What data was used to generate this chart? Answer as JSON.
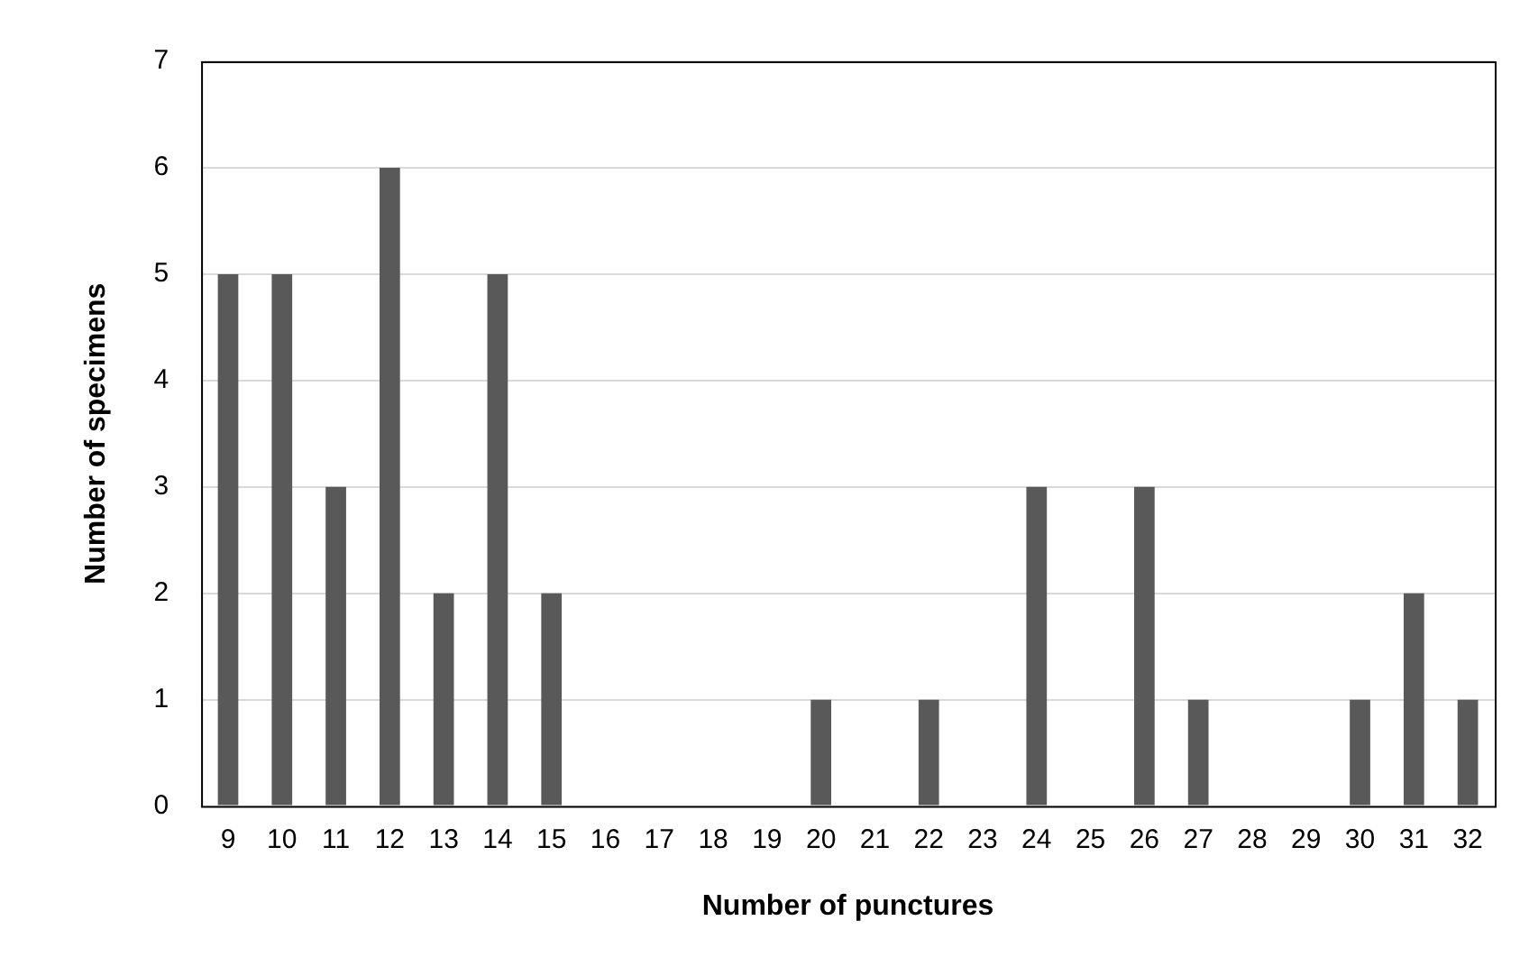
{
  "chart_data": {
    "type": "bar",
    "xlabel": "Number of punctures",
    "ylabel": "Number of specimens",
    "categories": [
      "9",
      "10",
      "11",
      "12",
      "13",
      "14",
      "15",
      "16",
      "17",
      "18",
      "19",
      "20",
      "21",
      "22",
      "23",
      "24",
      "25",
      "26",
      "27",
      "28",
      "29",
      "30",
      "31",
      "32"
    ],
    "values": [
      5,
      5,
      3,
      6,
      2,
      5,
      2,
      0,
      0,
      0,
      0,
      1,
      0,
      1,
      0,
      3,
      0,
      3,
      1,
      0,
      0,
      1,
      2,
      1
    ],
    "color": "#595959",
    "ylim": [
      0,
      7
    ],
    "yticks": [
      0,
      1,
      2,
      3,
      4,
      5,
      6,
      7
    ],
    "grid": "y",
    "legend": false
  }
}
